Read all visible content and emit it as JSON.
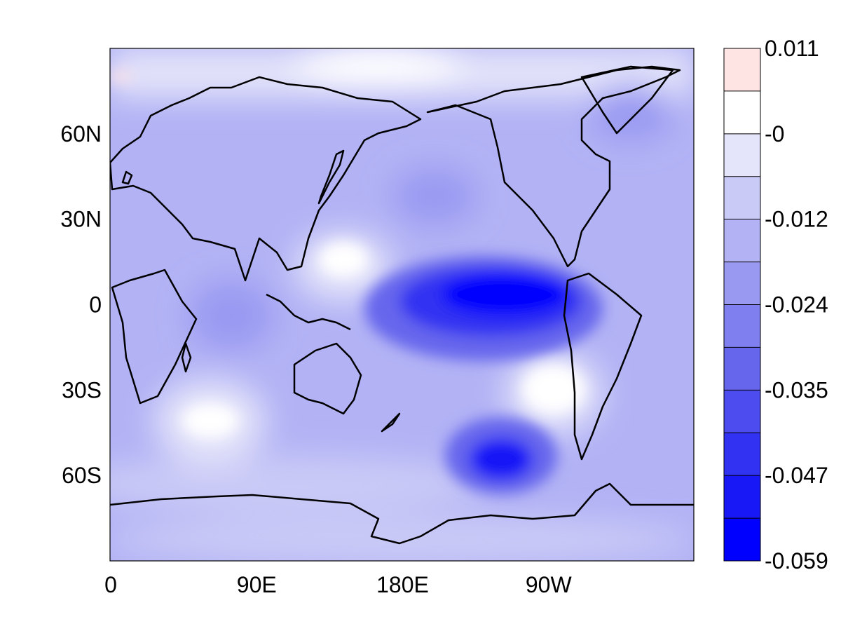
{
  "map": {
    "longitude_labels": [
      "0",
      "90E",
      "180E",
      "90W"
    ],
    "latitude_labels": [
      "60N",
      "30N",
      "0",
      "30S",
      "60S"
    ],
    "longitude_ticks_deg": [
      0,
      90,
      180,
      270
    ],
    "latitude_ticks_deg": [
      60,
      30,
      0,
      -30,
      -60
    ],
    "lon_range": [
      0,
      360
    ],
    "lat_range": [
      -90,
      90
    ],
    "projection": "cylindrical-equidistant",
    "centered_on": "180E",
    "coastlines": true,
    "field_feature_notes": [
      "strongest negative values in the eastern tropical Pacific",
      "strong negative values in the Southern Ocean south of New Zealand toward South America",
      "near-zero values in the subtropical southeast Pacific, Indian Ocean and parts of the Arctic",
      "small positive patch at the top-left edge near the Arctic"
    ]
  },
  "colorbar": {
    "labels": [
      "0.011",
      "-0",
      "-0.012",
      "-0.024",
      "-0.035",
      "-0.047",
      "-0.059"
    ],
    "levels": [
      0.011,
      0.0,
      -0.012,
      -0.024,
      -0.035,
      -0.047,
      -0.059
    ],
    "colors": [
      "#ffe4e4",
      "#ffffff",
      "#e4e4fa",
      "#cacaf7",
      "#b2b2f5",
      "#9999f2",
      "#7f7ff0",
      "#6666ed",
      "#4c4cef",
      "#3232f2",
      "#1818f7",
      "#0000ff"
    ]
  }
}
